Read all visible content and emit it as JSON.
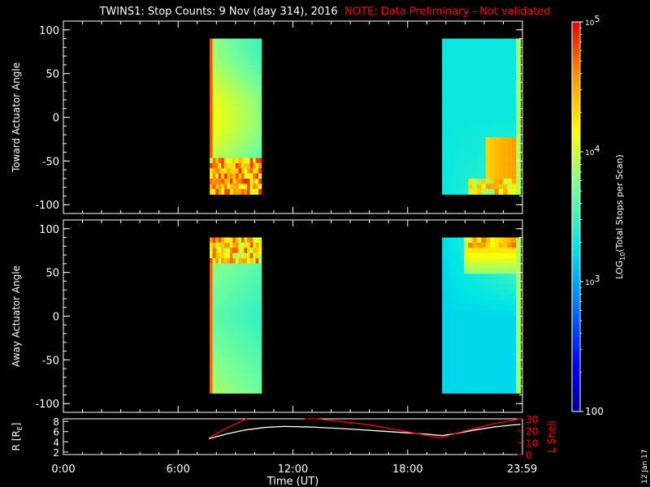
{
  "title": {
    "main": "TWINS1: Stop Counts:  9 Nov (day 314), 2016",
    "note": "NOTE: Data Preliminary - Not validated"
  },
  "stamp": "12 Jan 17",
  "colors": {
    "background": "#000000",
    "axes": "#ffffff",
    "note": "#ff0000",
    "r_line": "#ffffff",
    "lshell_line": "#ff0000"
  },
  "chart_data": [
    {
      "type": "heatmap",
      "name": "toward",
      "ylabel": "Toward Actuator Angle",
      "ylim": [
        -110,
        110
      ],
      "yticks": [
        100,
        50,
        0,
        -50,
        -100
      ],
      "xlim": [
        0,
        24
      ],
      "data_windows_hours": [
        [
          7.65,
          10.35
        ],
        [
          19.8,
          23.9
        ]
      ],
      "angle_range": [
        -88,
        90
      ],
      "log10_levels": {
        "window1_base": 4.0,
        "window1_edge_noisy_below_angle": -50,
        "window2_base": 3.3,
        "window2_corner_high": 4.6
      }
    },
    {
      "type": "heatmap",
      "name": "away",
      "ylabel": "Away Actuator Angle",
      "ylim": [
        -110,
        110
      ],
      "yticks": [
        100,
        50,
        0,
        -50,
        -100
      ],
      "xlim": [
        0,
        24
      ],
      "data_windows_hours": [
        [
          7.65,
          10.35
        ],
        [
          19.8,
          23.9
        ]
      ],
      "angle_range": [
        -88,
        90
      ],
      "log10_levels": {
        "window1_base": 3.9,
        "window1_edge_noisy_above_angle": 60,
        "window2_base": 3.2,
        "window2_top_high": 4.5
      }
    },
    {
      "type": "line",
      "name": "orbit",
      "ylabel_left": "R [R",
      "ylabel_left_sub": "E",
      "ylabel_right": "L Shell",
      "xlabel": "Time (UT)",
      "xticks": [
        0,
        6,
        12,
        18,
        23.983
      ],
      "xtick_labels": [
        "0:00",
        "6:00",
        "12:00",
        "18:00",
        "23:59"
      ],
      "ylim_left": [
        1.5,
        8.5
      ],
      "yticks_left": [
        2,
        4,
        6,
        8
      ],
      "ylim_right": [
        0,
        30
      ],
      "yticks_right": [
        0,
        10,
        20,
        30
      ],
      "series": [
        {
          "axis": "left",
          "color": "#ffffff",
          "x": [
            7.6,
            8.5,
            9.5,
            10.5,
            11.5,
            13,
            15,
            17,
            19,
            19.8,
            20.5,
            21.5,
            22.5,
            23.5,
            23.9
          ],
          "y": [
            4.6,
            5.5,
            6.3,
            6.8,
            7.0,
            6.9,
            6.5,
            6.0,
            5.5,
            5.2,
            5.6,
            6.3,
            6.9,
            7.3,
            7.4
          ]
        },
        {
          "axis": "right",
          "color": "#ff0000",
          "x": [
            7.6,
            8.5,
            9.3,
            9.6
          ],
          "y": [
            14,
            22,
            28,
            31
          ]
        },
        {
          "axis": "right",
          "color": "#ff0000",
          "x": [
            12.6,
            13.2,
            16,
            19.7,
            21,
            22.5,
            23.9
          ],
          "y": [
            31,
            30,
            25,
            14,
            20,
            26,
            30
          ]
        }
      ]
    },
    {
      "type": "colorbar",
      "label_pre": "LOG",
      "label_sub": "10",
      "label_post": "(Total Stops per Scan)",
      "range_log10": [
        2,
        5
      ],
      "ticks": [
        {
          "log10": 5,
          "base": "10",
          "exp": "5"
        },
        {
          "log10": 4,
          "base": "10",
          "exp": "4"
        },
        {
          "log10": 3,
          "base": "10",
          "exp": "3"
        },
        {
          "log10": 2,
          "base": "100",
          "exp": ""
        }
      ]
    }
  ]
}
